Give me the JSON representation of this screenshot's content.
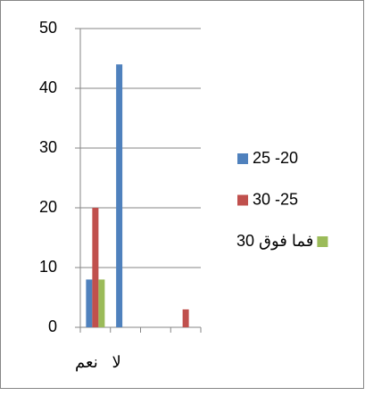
{
  "chart_data": {
    "type": "bar",
    "categories": [
      "نعم",
      "لا",
      null,
      null
    ],
    "series": [
      {
        "name": "25 -20",
        "color": "#4f81bd",
        "values": [
          8,
          44,
          0,
          0
        ]
      },
      {
        "name": "30 -25",
        "color": "#c0504d",
        "values": [
          20,
          0,
          0,
          3
        ]
      },
      {
        "name": "30 فما فوق",
        "color": "#9bbb59",
        "values": [
          8,
          0,
          0,
          0
        ]
      }
    ],
    "ylim": [
      0,
      50
    ],
    "yticks": [
      0,
      10,
      20,
      30,
      40,
      50
    ],
    "grid": true,
    "legend": "right"
  }
}
